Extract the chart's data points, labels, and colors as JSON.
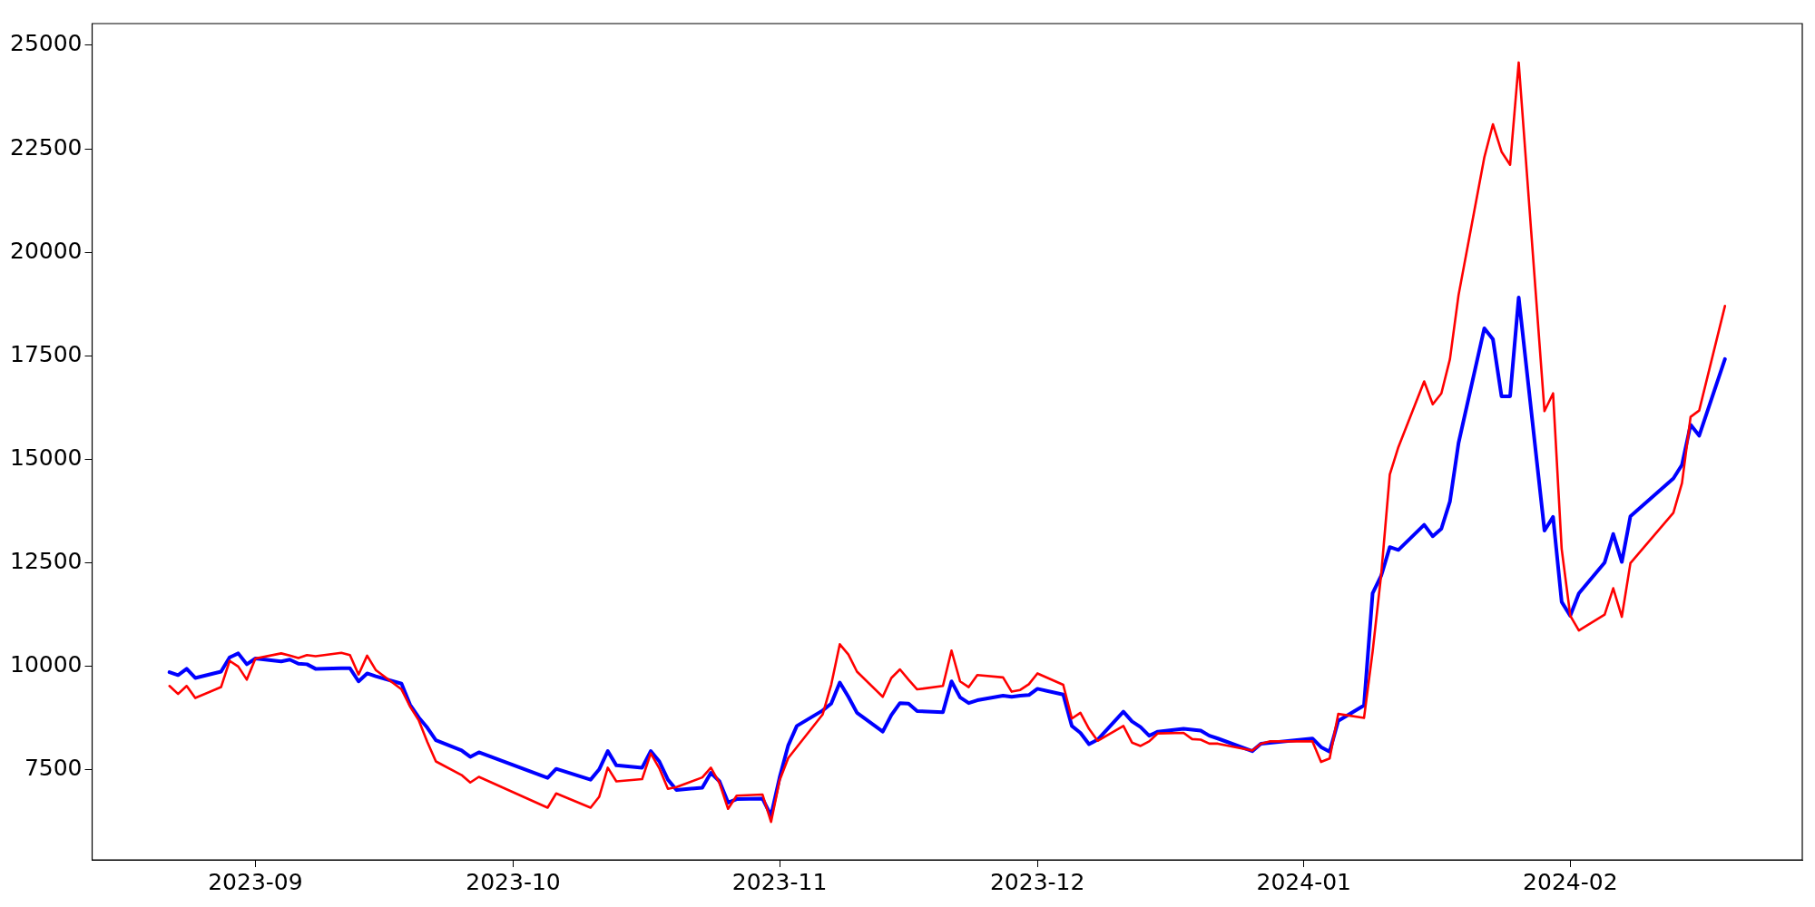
{
  "chart_data": {
    "type": "line",
    "xlim": [
      "2023-08-13",
      "2024-02-28"
    ],
    "xticks": [
      "2023-09",
      "2023-10",
      "2023-11",
      "2023-12",
      "2024-01",
      "2024-02"
    ],
    "ylim": [
      5314,
      25526
    ],
    "yticks": [
      7500,
      10000,
      12500,
      15000,
      17500,
      20000,
      22500,
      25000
    ],
    "grid": false,
    "legend": false,
    "marker": "none",
    "line_style": "solid",
    "series": [
      {
        "color": "#ff0000",
        "x": [
          "2023-08-22",
          "2023-08-23",
          "2023-08-24",
          "2023-08-25",
          "2023-08-28",
          "2023-08-29",
          "2023-08-30",
          "2023-08-31",
          "2023-09-01",
          "2023-09-04",
          "2023-09-05",
          "2023-09-06",
          "2023-09-07",
          "2023-09-08",
          "2023-09-11",
          "2023-09-12",
          "2023-09-13",
          "2023-09-14",
          "2023-09-15",
          "2023-09-18",
          "2023-09-19",
          "2023-09-20",
          "2023-09-21",
          "2023-09-22",
          "2023-09-25",
          "2023-09-26",
          "2023-09-27",
          "2023-10-05",
          "2023-10-06",
          "2023-10-10",
          "2023-10-11",
          "2023-10-12",
          "2023-10-13",
          "2023-10-16",
          "2023-10-17",
          "2023-10-18",
          "2023-10-19",
          "2023-10-20",
          "2023-10-23",
          "2023-10-24",
          "2023-10-25",
          "2023-10-26",
          "2023-10-27",
          "2023-10-30",
          "2023-10-31",
          "2023-11-01",
          "2023-11-02",
          "2023-11-03",
          "2023-11-06",
          "2023-11-07",
          "2023-11-08",
          "2023-11-09",
          "2023-11-10",
          "2023-11-13",
          "2023-11-14",
          "2023-11-15",
          "2023-11-16",
          "2023-11-17",
          "2023-11-20",
          "2023-11-21",
          "2023-11-22",
          "2023-11-23",
          "2023-11-24",
          "2023-11-27",
          "2023-11-28",
          "2023-11-29",
          "2023-11-30",
          "2023-12-01",
          "2023-12-04",
          "2023-12-05",
          "2023-12-06",
          "2023-12-07",
          "2023-12-08",
          "2023-12-11",
          "2023-12-12",
          "2023-12-13",
          "2023-12-14",
          "2023-12-15",
          "2023-12-18",
          "2023-12-19",
          "2023-12-20",
          "2023-12-21",
          "2023-12-22",
          "2023-12-26",
          "2023-12-27",
          "2023-12-28",
          "2024-01-02",
          "2024-01-03",
          "2024-01-04",
          "2024-01-05",
          "2024-01-08",
          "2024-01-09",
          "2024-01-10",
          "2024-01-11",
          "2024-01-12",
          "2024-01-15",
          "2024-01-16",
          "2024-01-17",
          "2024-01-18",
          "2024-01-19",
          "2024-01-22",
          "2024-01-23",
          "2024-01-24",
          "2024-01-25",
          "2024-01-26",
          "2024-01-29",
          "2024-01-30",
          "2024-01-31",
          "2024-02-01",
          "2024-02-02",
          "2024-02-05",
          "2024-02-06",
          "2024-02-07",
          "2024-02-08",
          "2024-02-13",
          "2024-02-14",
          "2024-02-15",
          "2024-02-16",
          "2024-02-19"
        ],
        "values": [
          9517,
          9323,
          9517,
          9226,
          9489,
          10124,
          9986,
          9669,
          10180,
          10304,
          10250,
          10193,
          10262,
          10235,
          10318,
          10262,
          9793,
          10249,
          9903,
          9434,
          9019,
          8688,
          8163,
          7693,
          7362,
          7182,
          7320,
          6574,
          6920,
          6574,
          6837,
          7541,
          7210,
          7265,
          7887,
          7527,
          7030,
          7072,
          7306,
          7541,
          7169,
          6547,
          6865,
          6893,
          6230,
          7238,
          7776,
          8039,
          8826,
          9544,
          10525,
          10276,
          9862,
          9254,
          9710,
          9917,
          9669,
          9434,
          9517,
          10373,
          9627,
          9489,
          9779,
          9724,
          9379,
          9420,
          9558,
          9820,
          9544,
          8729,
          8867,
          8481,
          8191,
          8550,
          8149,
          8067,
          8177,
          8370,
          8384,
          8232,
          8218,
          8122,
          8122,
          7956,
          8122,
          8177,
          8177,
          7680,
          7763,
          8840,
          8743,
          10345,
          12210,
          14627,
          15290,
          16878,
          16325,
          16588,
          17417,
          18963,
          22292,
          23093,
          22430,
          22113,
          24585,
          16159,
          16588,
          12831,
          11215,
          10856,
          11243,
          11878,
          11188,
          12486,
          13701,
          14420,
          16021,
          16173,
          18700
        ]
      },
      {
        "color": "#0000ff",
        "x": [
          "2023-08-22",
          "2023-08-23",
          "2023-08-24",
          "2023-08-25",
          "2023-08-28",
          "2023-08-29",
          "2023-08-30",
          "2023-08-31",
          "2023-09-01",
          "2023-09-04",
          "2023-09-05",
          "2023-09-06",
          "2023-09-07",
          "2023-09-08",
          "2023-09-11",
          "2023-09-12",
          "2023-09-13",
          "2023-09-14",
          "2023-09-15",
          "2023-09-18",
          "2023-09-19",
          "2023-09-20",
          "2023-09-21",
          "2023-09-22",
          "2023-09-25",
          "2023-09-26",
          "2023-09-27",
          "2023-10-05",
          "2023-10-06",
          "2023-10-10",
          "2023-10-11",
          "2023-10-12",
          "2023-10-13",
          "2023-10-16",
          "2023-10-17",
          "2023-10-18",
          "2023-10-19",
          "2023-10-20",
          "2023-10-23",
          "2023-10-24",
          "2023-10-25",
          "2023-10-26",
          "2023-10-27",
          "2023-10-30",
          "2023-10-31",
          "2023-11-01",
          "2023-11-02",
          "2023-11-03",
          "2023-11-06",
          "2023-11-07",
          "2023-11-08",
          "2023-11-09",
          "2023-11-10",
          "2023-11-13",
          "2023-11-14",
          "2023-11-15",
          "2023-11-16",
          "2023-11-17",
          "2023-11-20",
          "2023-11-21",
          "2023-11-22",
          "2023-11-23",
          "2023-11-24",
          "2023-11-27",
          "2023-11-28",
          "2023-11-29",
          "2023-11-30",
          "2023-12-01",
          "2023-12-04",
          "2023-12-05",
          "2023-12-06",
          "2023-12-07",
          "2023-12-08",
          "2023-12-11",
          "2023-12-12",
          "2023-12-13",
          "2023-12-14",
          "2023-12-15",
          "2023-12-18",
          "2023-12-19",
          "2023-12-20",
          "2023-12-21",
          "2023-12-22",
          "2023-12-26",
          "2023-12-27",
          "2024-01-02",
          "2024-01-03",
          "2024-01-04",
          "2024-01-05",
          "2024-01-08",
          "2024-01-09",
          "2024-01-10",
          "2024-01-11",
          "2024-01-12",
          "2024-01-15",
          "2024-01-16",
          "2024-01-17",
          "2024-01-18",
          "2024-01-19",
          "2024-01-22",
          "2024-01-23",
          "2024-01-24",
          "2024-01-25",
          "2024-01-26",
          "2024-01-29",
          "2024-01-30",
          "2024-01-31",
          "2024-02-01",
          "2024-02-02",
          "2024-02-05",
          "2024-02-06",
          "2024-02-07",
          "2024-02-08",
          "2024-02-13",
          "2024-02-14",
          "2024-02-15",
          "2024-02-16",
          "2024-02-19"
        ],
        "values": [
          9848,
          9779,
          9931,
          9710,
          9862,
          10207,
          10304,
          10041,
          10180,
          10110,
          10152,
          10055,
          10041,
          9931,
          9945,
          9945,
          9627,
          9820,
          9751,
          9572,
          9061,
          8757,
          8508,
          8204,
          7956,
          7804,
          7914,
          7293,
          7514,
          7251,
          7500,
          7942,
          7597,
          7541,
          7942,
          7693,
          7251,
          7003,
          7058,
          7417,
          7210,
          6699,
          6782,
          6796,
          6382,
          7307,
          8080,
          8550,
          8923,
          9089,
          9600,
          9254,
          8868,
          8412,
          8812,
          9102,
          9089,
          8909,
          8881,
          9627,
          9240,
          9102,
          9171,
          9282,
          9254,
          9282,
          9296,
          9448,
          9310,
          8550,
          8384,
          8108,
          8218,
          8895,
          8660,
          8522,
          8315,
          8412,
          8481,
          8460,
          8439,
          8315,
          8246,
          7942,
          8122,
          8246,
          8039,
          7928,
          8674,
          9047,
          11754,
          12182,
          12873,
          12804,
          13411,
          13135,
          13315,
          13977,
          15386,
          18162,
          17899,
          16518,
          16518,
          18908,
          13273,
          13604,
          11547,
          11215,
          11754,
          12500,
          13190,
          12514,
          13618,
          14531,
          14862,
          15829,
          15566,
          17417
        ]
      }
    ]
  }
}
